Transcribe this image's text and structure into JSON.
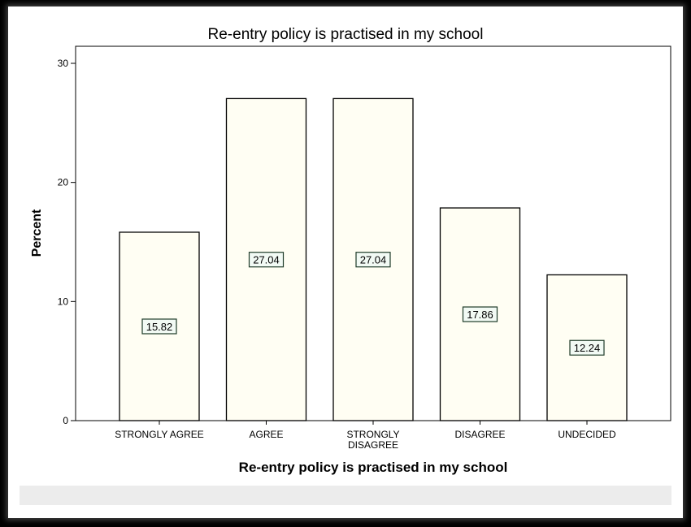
{
  "chart_data": {
    "type": "bar",
    "title": "Re-entry policy is practised in my school",
    "xlabel": "Re-entry policy is practised in my school",
    "ylabel": "Percent",
    "ylim": [
      0,
      30
    ],
    "yticks": [
      "0",
      "10",
      "20",
      "30"
    ],
    "categories": [
      [
        "STRONGLY AGREE"
      ],
      [
        "AGREE"
      ],
      [
        "STRONGLY",
        "DISAGREE"
      ],
      [
        "DISAGREE"
      ],
      [
        "UNDECIDED"
      ]
    ],
    "values": [
      15.82,
      27.04,
      27.04,
      17.86,
      12.24
    ],
    "value_labels": [
      "15.82",
      "27.04",
      "27.04",
      "17.86",
      "12.24"
    ],
    "grid": false,
    "colors": {
      "bar_fill": "#fffef3",
      "bar_stroke": "#000000",
      "label_fill": "#f2faf4",
      "label_stroke": "#1e3b28"
    }
  }
}
